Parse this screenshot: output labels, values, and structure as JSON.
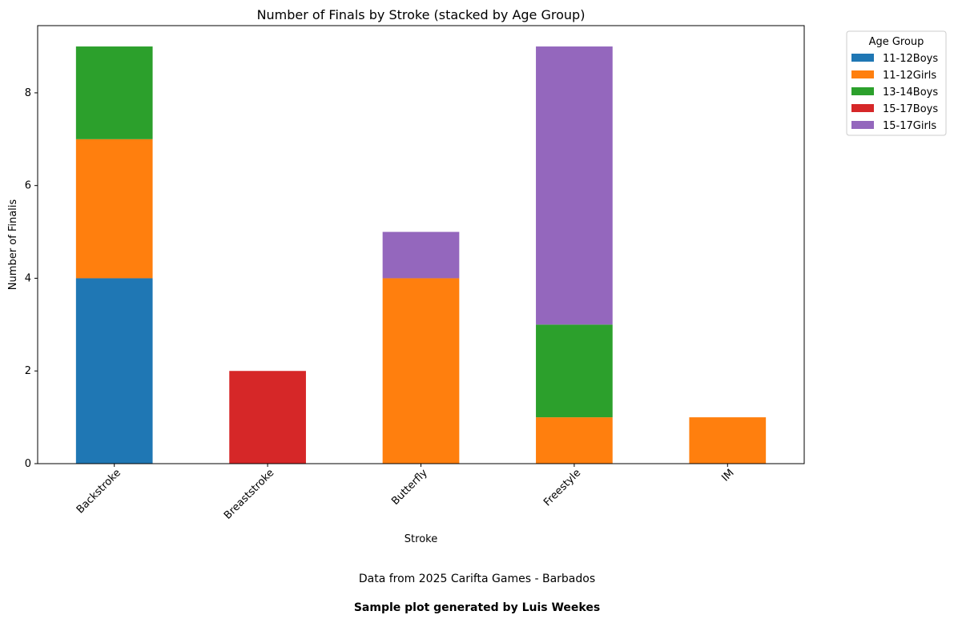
{
  "chart_data": {
    "type": "bar",
    "stacked": true,
    "title": "Number of Finals by Stroke (stacked by Age Group)",
    "xlabel": "Stroke",
    "ylabel": "Number of Finalis",
    "categories": [
      "Backstroke",
      "Breaststroke",
      "Butterfly",
      "Freestyle",
      "IM"
    ],
    "series": [
      {
        "name": "11-12Boys",
        "color": "#1f77b4",
        "values": [
          4,
          0,
          0,
          0,
          0
        ]
      },
      {
        "name": "11-12Girls",
        "color": "#ff7f0e",
        "values": [
          3,
          0,
          4,
          1,
          1
        ]
      },
      {
        "name": "13-14Boys",
        "color": "#2ca02c",
        "values": [
          2,
          0,
          0,
          2,
          0
        ]
      },
      {
        "name": "15-17Boys",
        "color": "#d62728",
        "values": [
          0,
          2,
          0,
          0,
          0
        ]
      },
      {
        "name": "15-17Girls",
        "color": "#9467bd",
        "values": [
          0,
          0,
          1,
          6,
          0
        ]
      }
    ],
    "ylim": [
      0,
      9.45
    ],
    "yticks": [
      0,
      2,
      4,
      6,
      8
    ],
    "xtick_rotation": 45,
    "grid": false,
    "legend": {
      "title": "Age Group",
      "placement": "outside-top-right"
    }
  },
  "footer": {
    "source": "Data from 2025 Carifta Games - Barbados",
    "credit": "Sample plot generated by Luis Weekes"
  }
}
